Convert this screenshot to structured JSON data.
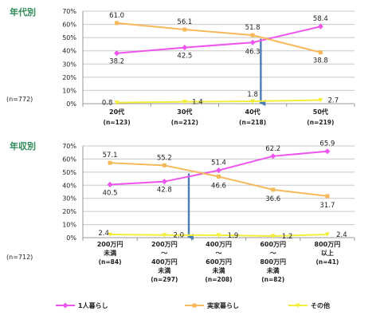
{
  "chart_data": [
    {
      "type": "line",
      "title": "年代別",
      "n_label": "(n=772)",
      "ylim": [
        0,
        70
      ],
      "ytick_step": 10,
      "ytick_suffix": "%",
      "grid": true,
      "categories": [
        {
          "label": "20代",
          "n": "(n=123)"
        },
        {
          "label": "30代",
          "n": "(n=212)"
        },
        {
          "label": "40代",
          "n": "(n=218)"
        },
        {
          "label": "50代",
          "n": "(n=219)"
        }
      ],
      "series": [
        {
          "name": "1人暮らし",
          "color": "#ee55ee",
          "values": [
            38.2,
            42.5,
            46.3,
            58.4
          ],
          "labels": [
            "38.2",
            "42.5",
            "46.3",
            "58.4"
          ]
        },
        {
          "name": "実家暮らし",
          "color": "#f5b85a",
          "values": [
            61.0,
            56.1,
            51.8,
            38.8
          ],
          "labels": [
            "61.0",
            "56.1",
            "51.8",
            "38.8"
          ]
        },
        {
          "name": "その他",
          "color": "#f2ee3a",
          "values": [
            0.8,
            1.4,
            1.8,
            2.7
          ],
          "labels": [
            "0.8",
            "1.4",
            "1.8",
            "2.7"
          ]
        }
      ],
      "crossover_arrow": {
        "from_category": 2.12,
        "from_value": 49.2,
        "to_value": 0
      }
    },
    {
      "type": "line",
      "title": "年収別",
      "n_label": "(n=712)",
      "ylim": [
        0,
        70
      ],
      "ytick_step": 10,
      "ytick_suffix": "%",
      "grid": true,
      "categories": [
        {
          "lines": [
            "200万円",
            "未満"
          ],
          "n": "(n=84)"
        },
        {
          "lines": [
            "200万円",
            "～",
            "400万円",
            "未満"
          ],
          "n": "(n=297)"
        },
        {
          "lines": [
            "400万円",
            "～",
            "600万円",
            "未満"
          ],
          "n": "(n=208)"
        },
        {
          "lines": [
            "600万円",
            "～",
            "800万円",
            "未満"
          ],
          "n": "(n=82)"
        },
        {
          "lines": [
            "800万円",
            "以上"
          ],
          "n": "(n=41)"
        }
      ],
      "series": [
        {
          "name": "1人暮らし",
          "color": "#ee55ee",
          "values": [
            40.5,
            42.8,
            51.4,
            62.2,
            65.9
          ],
          "labels": [
            "40.5",
            "42.8",
            "51.4",
            "62.2",
            "65.9"
          ]
        },
        {
          "name": "実家暮らし",
          "color": "#f5b85a",
          "values": [
            57.1,
            55.2,
            46.6,
            36.6,
            31.7
          ],
          "labels": [
            "57.1",
            "55.2",
            "46.6",
            "36.6",
            "31.7"
          ]
        },
        {
          "name": "その他",
          "color": "#f2ee3a",
          "values": [
            2.4,
            2.0,
            1.9,
            1.2,
            2.4
          ],
          "labels": [
            "2.4",
            "2.0",
            "1.9",
            "1.2",
            "2.4"
          ]
        }
      ],
      "crossover_arrow": {
        "from_category": 1.45,
        "from_value": 49.0,
        "to_value": 0
      }
    }
  ],
  "legend": [
    {
      "name": "1人暮らし",
      "color": "#ee55ee"
    },
    {
      "name": "実家暮らし",
      "color": "#f5b85a"
    },
    {
      "name": "その他",
      "color": "#f2ee3a"
    }
  ],
  "colors": {
    "title": "#2e8b57",
    "axis": "#999999",
    "grid": "#c8c8c8",
    "arrow": "#4a7fb5",
    "text": "#222222"
  }
}
